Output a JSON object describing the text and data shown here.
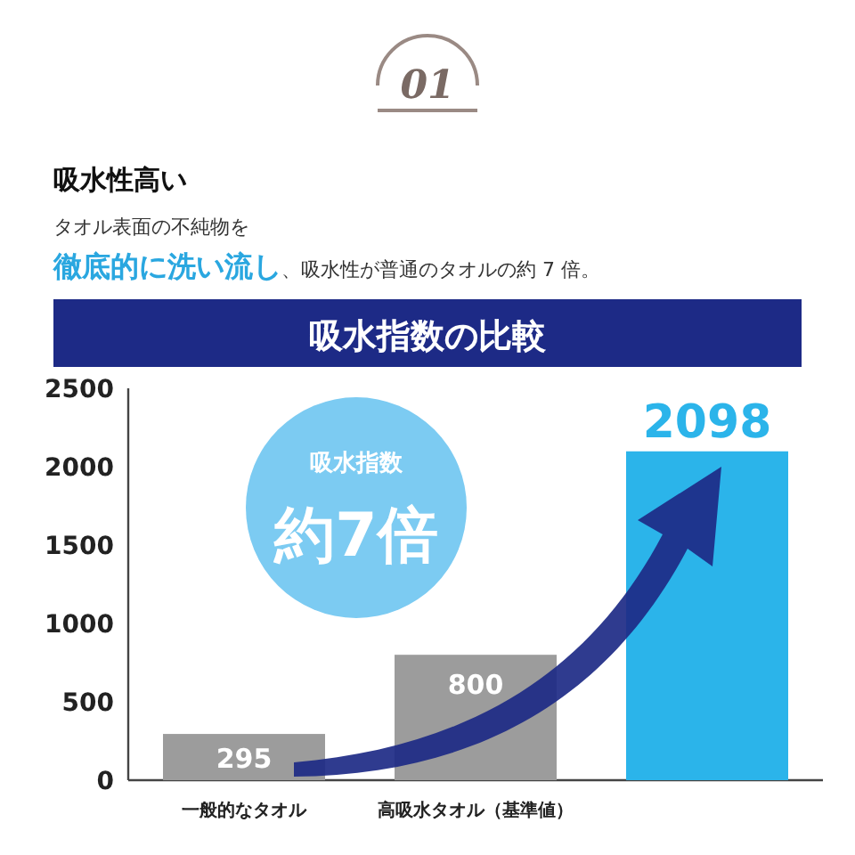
{
  "chart_data": {
    "type": "bar",
    "title": "吸水指数の比較",
    "categories": [
      "一般的なタオル",
      "高吸水タオル（基準値）",
      null
    ],
    "values": [
      295,
      800,
      2098
    ],
    "colors": [
      "#9c9c9c",
      "#9c9c9c",
      "#2bb4ea"
    ],
    "ylim": [
      0,
      2500
    ],
    "yticks": [
      0,
      500,
      1000,
      1500,
      2000,
      2500
    ],
    "data_labels": true,
    "grid": false,
    "annotations": [
      "01",
      "吸水性高い",
      "タオル表面の不純物を",
      "徹底的に洗い流し、吸水性が普通のタオルの約 7 倍。",
      "吸水指数",
      "約7倍"
    ]
  }
}
